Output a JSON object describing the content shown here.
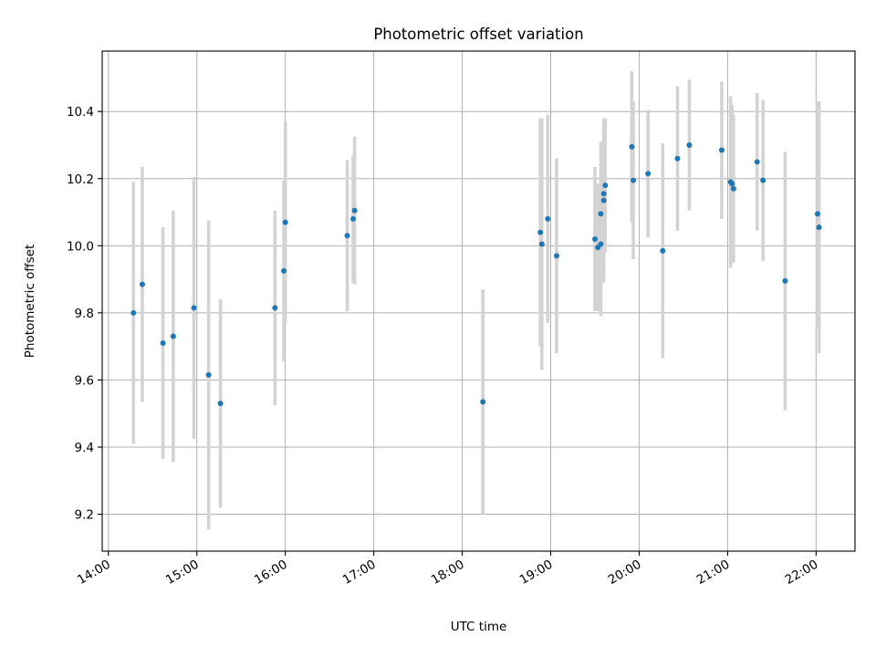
{
  "chart_data": {
    "type": "scatter",
    "title": "Photometric offset variation",
    "xlabel": "UTC time",
    "ylabel": "Photometric offset",
    "xlim_hours": [
      13.93,
      22.44
    ],
    "ylim": [
      9.09,
      10.58
    ],
    "x_ticks": [
      {
        "value": 14,
        "label": "14:00"
      },
      {
        "value": 15,
        "label": "15:00"
      },
      {
        "value": 16,
        "label": "16:00"
      },
      {
        "value": 17,
        "label": "17:00"
      },
      {
        "value": 18,
        "label": "18:00"
      },
      {
        "value": 19,
        "label": "19:00"
      },
      {
        "value": 20,
        "label": "20:00"
      },
      {
        "value": 21,
        "label": "21:00"
      },
      {
        "value": 22,
        "label": "22:00"
      }
    ],
    "y_ticks": [
      9.2,
      9.4,
      9.6,
      9.8,
      10.0,
      10.2,
      10.4
    ],
    "grid": true,
    "colors": {
      "point": "#1f77b4",
      "errorbar": "#d3d3d3",
      "grid": "#b0b0b0"
    },
    "points": [
      {
        "t": "14:17",
        "y": 9.8,
        "err": 0.39
      },
      {
        "t": "14:23",
        "y": 9.885,
        "err": 0.35
      },
      {
        "t": "14:37",
        "y": 9.71,
        "err": 0.345
      },
      {
        "t": "14:44",
        "y": 9.73,
        "err": 0.375
      },
      {
        "t": "14:58",
        "y": 9.815,
        "err": 0.39
      },
      {
        "t": "15:08",
        "y": 9.615,
        "err": 0.46
      },
      {
        "t": "15:16",
        "y": 9.53,
        "err": 0.31
      },
      {
        "t": "15:53",
        "y": 9.815,
        "err": 0.29
      },
      {
        "t": "15:59",
        "y": 9.925,
        "err": 0.27
      },
      {
        "t": "16:00",
        "y": 10.07,
        "err": 0.3
      },
      {
        "t": "16:42",
        "y": 10.03,
        "err": 0.225
      },
      {
        "t": "16:46",
        "y": 10.08,
        "err": 0.19
      },
      {
        "t": "16:47",
        "y": 10.105,
        "err": 0.22
      },
      {
        "t": "18:14",
        "y": 9.535,
        "err": 0.335
      },
      {
        "t": "18:53",
        "y": 10.04,
        "err": 0.34
      },
      {
        "t": "18:54",
        "y": 10.005,
        "err": 0.375
      },
      {
        "t": "18:58",
        "y": 10.08,
        "err": 0.31
      },
      {
        "t": "19:04",
        "y": 9.97,
        "err": 0.29
      },
      {
        "t": "19:30",
        "y": 10.02,
        "err": 0.215
      },
      {
        "t": "19:32",
        "y": 9.995,
        "err": 0.19
      },
      {
        "t": "19:34",
        "y": 10.005,
        "err": 0.215
      },
      {
        "t": "19:34",
        "y": 10.095,
        "err": 0.215
      },
      {
        "t": "19:36",
        "y": 10.135,
        "err": 0.245
      },
      {
        "t": "19:36",
        "y": 10.155,
        "err": 0.215
      },
      {
        "t": "19:37",
        "y": 10.18,
        "err": 0.2
      },
      {
        "t": "19:55",
        "y": 10.295,
        "err": 0.225
      },
      {
        "t": "19:56",
        "y": 10.195,
        "err": 0.235
      },
      {
        "t": "20:06",
        "y": 10.215,
        "err": 0.19
      },
      {
        "t": "20:16",
        "y": 9.985,
        "err": 0.32
      },
      {
        "t": "20:26",
        "y": 10.26,
        "err": 0.215
      },
      {
        "t": "20:34",
        "y": 10.3,
        "err": 0.195
      },
      {
        "t": "20:56",
        "y": 10.285,
        "err": 0.205
      },
      {
        "t": "21:02",
        "y": 10.19,
        "err": 0.255
      },
      {
        "t": "21:03",
        "y": 10.185,
        "err": 0.235
      },
      {
        "t": "21:04",
        "y": 10.17,
        "err": 0.22
      },
      {
        "t": "21:20",
        "y": 10.25,
        "err": 0.205
      },
      {
        "t": "21:24",
        "y": 10.195,
        "err": 0.24
      },
      {
        "t": "21:39",
        "y": 9.895,
        "err": 0.385
      },
      {
        "t": "22:01",
        "y": 10.095,
        "err": 0.335
      },
      {
        "t": "22:02",
        "y": 10.055,
        "err": 0.375
      }
    ]
  }
}
